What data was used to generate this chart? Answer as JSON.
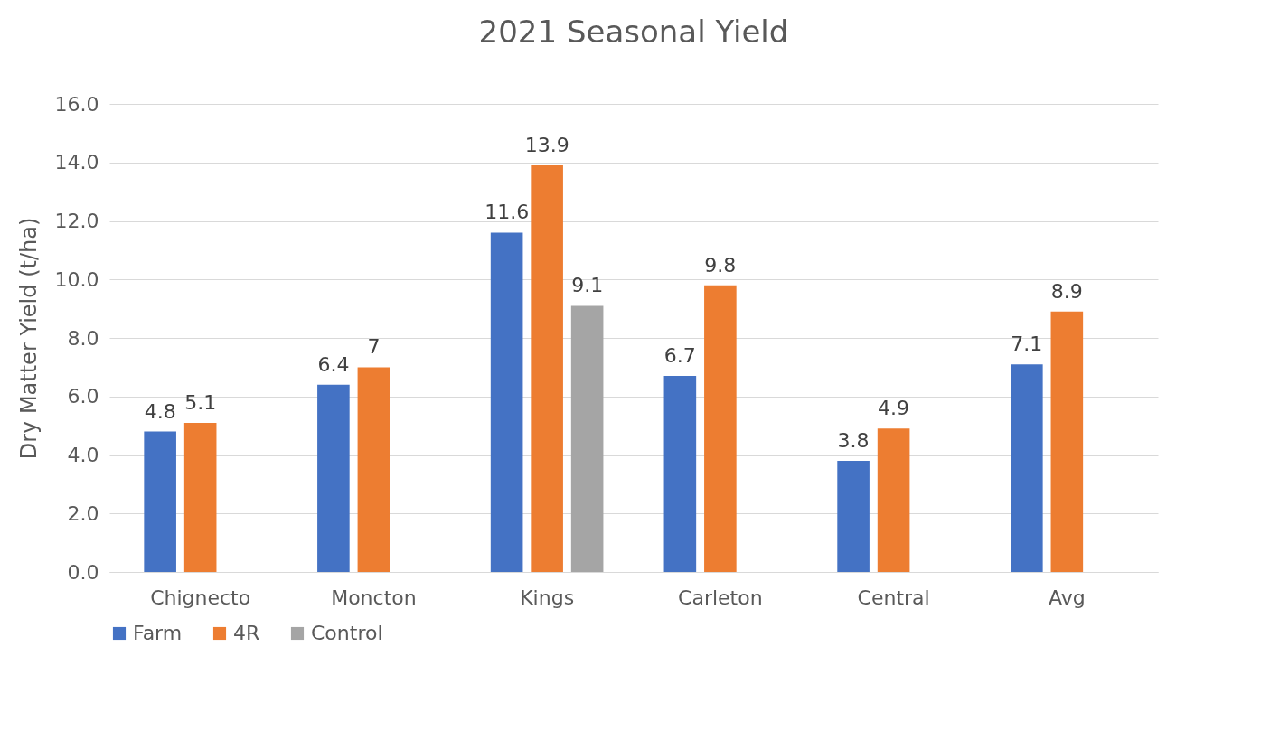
{
  "chart_data": {
    "type": "bar",
    "title": "2021 Seasonal Yield",
    "ylabel": "Dry Matter Yield (t/ha)",
    "categories": [
      "Chignecto",
      "Moncton",
      "Kings",
      "Carleton",
      "Central",
      "Avg"
    ],
    "series": [
      {
        "name": "Farm",
        "color": "#4472c4",
        "values": [
          4.8,
          6.4,
          11.6,
          6.7,
          3.8,
          7.1
        ],
        "value_labels": [
          "4.8",
          "6.4",
          "11.6",
          "6.7",
          "3.8",
          "7.1"
        ]
      },
      {
        "name": "4R",
        "color": "#ed7d31",
        "values": [
          5.1,
          7,
          13.9,
          9.8,
          4.9,
          8.9
        ],
        "value_labels": [
          "5.1",
          "7",
          "13.9",
          "9.8",
          "4.9",
          "8.9"
        ]
      },
      {
        "name": "Control",
        "color": "#a5a5a5",
        "values": [
          null,
          null,
          9.1,
          null,
          null,
          null
        ],
        "value_labels": [
          null,
          null,
          "9.1",
          null,
          null,
          null
        ]
      }
    ],
    "ylim": [
      0,
      16
    ],
    "yticks": [
      {
        "value": 0,
        "label": "0.0"
      },
      {
        "value": 2,
        "label": "2.0"
      },
      {
        "value": 4,
        "label": "4.0"
      },
      {
        "value": 6,
        "label": "6.0"
      },
      {
        "value": 8,
        "label": "8.0"
      },
      {
        "value": 10,
        "label": "10.0"
      },
      {
        "value": 12,
        "label": "12.0"
      },
      {
        "value": 14,
        "label": "14.0"
      },
      {
        "value": 16,
        "label": "16.0"
      }
    ],
    "grid": "y",
    "legend": "bottom"
  }
}
